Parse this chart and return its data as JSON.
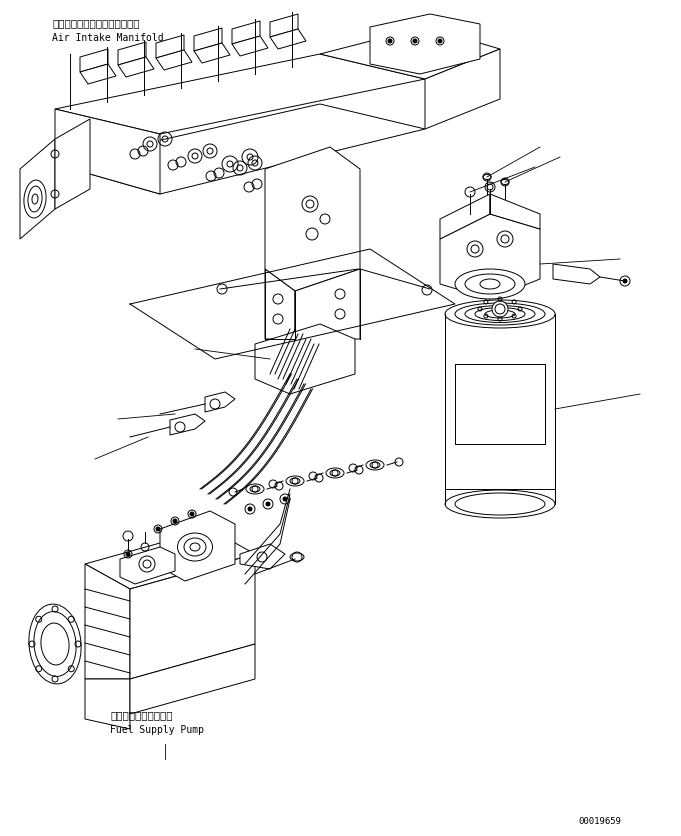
{
  "bg_color": "#ffffff",
  "line_color": "#000000",
  "fig_width": 6.81,
  "fig_height": 8.37,
  "dpi": 100,
  "label_top_jp": "エアーインテークマニホールド",
  "label_top_en": "Air Intake Manifold",
  "label_bottom_jp": "フェルサプライボンプ",
  "label_bottom_en": "Fuel Supply Pump",
  "part_number": "00019659",
  "lw": 0.7
}
